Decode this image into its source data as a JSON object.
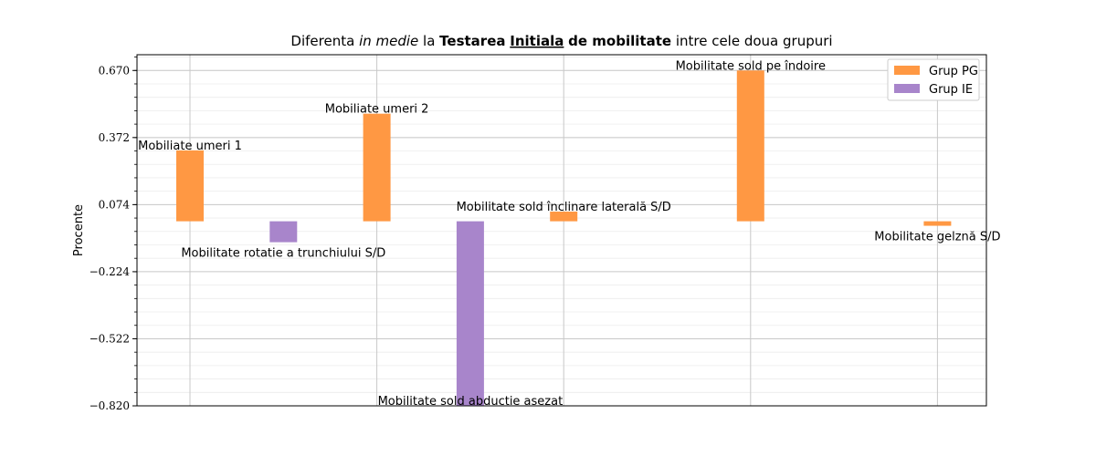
{
  "chart_data": {
    "type": "bar",
    "title_parts": [
      {
        "text": "Diferenta ",
        "style": "normal"
      },
      {
        "text": "in medie",
        "style": "italic"
      },
      {
        "text": " la ",
        "style": "normal"
      },
      {
        "text": "Testarea",
        "style": "bold"
      },
      {
        "text": " ",
        "style": "normal"
      },
      {
        "text": "Initiala",
        "style": "bold-underline"
      },
      {
        "text": " ",
        "style": "normal"
      },
      {
        "text": "de mobilitate",
        "style": "bold"
      },
      {
        "text": " intre cele doua grupuri",
        "style": "normal"
      }
    ],
    "ylabel": "Procente",
    "ylim": [
      -0.82,
      0.74
    ],
    "yticks": [
      0.67,
      0.372,
      0.074,
      -0.224,
      -0.522,
      -0.82
    ],
    "ytick_labels": [
      "0.670",
      "0.372",
      "0.074",
      "−0.224",
      "−0.522",
      "−0.820"
    ],
    "grid": true,
    "legend_position": "top-right",
    "series": [
      {
        "name": "Grup PG",
        "color": "#ff9843"
      },
      {
        "name": "Grup IE",
        "color": "#a885cb"
      }
    ],
    "bars": [
      {
        "x": 0,
        "series": 0,
        "value": 0.315,
        "label": "Mobiliate umeri 1"
      },
      {
        "x": 1,
        "series": 1,
        "value": -0.093,
        "label": "Mobilitate rotatie a trunchiului S/D"
      },
      {
        "x": 2,
        "series": 0,
        "value": 0.478,
        "label": "Mobiliate umeri 2"
      },
      {
        "x": 3,
        "series": 1,
        "value": -0.82,
        "label": "Mobilitate sold abductie asezat"
      },
      {
        "x": 4,
        "series": 0,
        "value": 0.043,
        "label": "Mobilitate sold înclinare laterală S/D"
      },
      {
        "x": 6,
        "series": 0,
        "value": 0.67,
        "label": "Mobilitate sold pe îndoire"
      },
      {
        "x": 8,
        "series": 0,
        "value": -0.02,
        "label": "Mobilitate gelznă S/D"
      }
    ],
    "xgrid_positions": [
      0,
      2,
      4,
      6,
      8
    ]
  }
}
